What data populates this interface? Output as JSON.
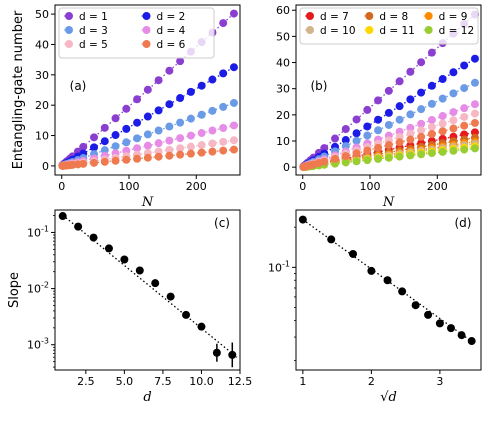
{
  "chart_data": [
    {
      "panel": "(a)",
      "type": "scatter",
      "xlabel": "N",
      "ylabel": "Entangling-gate number",
      "xlim": [
        -10,
        265
      ],
      "ylim": [
        -3,
        53
      ],
      "xticks": [
        0,
        100,
        200
      ],
      "yticks": [
        0,
        10,
        20,
        30,
        40,
        50
      ],
      "legend": {
        "placement": "top",
        "columns": 2
      },
      "series": [
        {
          "name": "d = 1",
          "color": "#8a3fd1",
          "slope": 0.196,
          "intercept": 0.0
        },
        {
          "name": "d = 2",
          "color": "#1c1ce6",
          "slope": 0.127,
          "intercept": 0.0
        },
        {
          "name": "d = 3",
          "color": "#6b9be6",
          "slope": 0.081,
          "intercept": 0.0
        },
        {
          "name": "d = 4",
          "color": "#e68ce6",
          "slope": 0.052,
          "intercept": 0.0
        },
        {
          "name": "d = 5",
          "color": "#f6b8c4",
          "slope": 0.033,
          "intercept": 0.0
        },
        {
          "name": "d = 6",
          "color": "#f07a50",
          "slope": 0.021,
          "intercept": 0.0
        }
      ],
      "x": [
        1,
        2,
        3,
        4,
        6,
        8,
        12,
        16,
        24,
        32,
        48,
        64,
        80,
        96,
        112,
        128,
        144,
        160,
        176,
        192,
        208,
        224,
        240,
        256
      ]
    },
    {
      "panel": "(b)",
      "type": "scatter",
      "xlabel": "N",
      "ylabel": "",
      "xlim": [
        -10,
        265
      ],
      "ylim": [
        -3,
        62
      ],
      "xticks": [
        0,
        100,
        200
      ],
      "yticks": [
        0,
        10,
        20,
        30,
        40,
        50,
        60
      ],
      "legend": {
        "placement": "top",
        "columns": 3
      },
      "series": [
        {
          "name": "d = 7",
          "color": "#e41a1c",
          "slope": 0.052,
          "intercept": 0.0
        },
        {
          "name": "d = 8",
          "color": "#d2691e",
          "slope": 0.044,
          "intercept": 0.0
        },
        {
          "name": "d = 9",
          "color": "#ff8c00",
          "slope": 0.038,
          "intercept": 0.0
        },
        {
          "name": "d = 10",
          "color": "#d2b48c",
          "slope": 0.035,
          "intercept": 0.0
        },
        {
          "name": "d = 11",
          "color": "#ffd700",
          "slope": 0.031,
          "intercept": 0.0
        },
        {
          "name": "d = 12",
          "color": "#9acd32",
          "slope": 0.028,
          "intercept": 0.0
        },
        {
          "name": "",
          "color": "#8a3fd1",
          "slope": 0.228,
          "intercept": 0.0
        },
        {
          "name": "",
          "color": "#1c1ce6",
          "slope": 0.162,
          "intercept": 0.0
        },
        {
          "name": "",
          "color": "#6b9be6",
          "slope": 0.126,
          "intercept": 0.0
        },
        {
          "name": "",
          "color": "#e68ce6",
          "slope": 0.094,
          "intercept": 0.0
        },
        {
          "name": "",
          "color": "#f6b8c4",
          "slope": 0.08,
          "intercept": 0.0
        },
        {
          "name": "",
          "color": "#f07a50",
          "slope": 0.066,
          "intercept": 0.0
        }
      ],
      "x": [
        1,
        2,
        3,
        4,
        6,
        8,
        12,
        16,
        24,
        32,
        48,
        64,
        80,
        96,
        112,
        128,
        144,
        160,
        176,
        192,
        208,
        224,
        240,
        256
      ]
    },
    {
      "panel": "(c)",
      "type": "scatter",
      "xlabel": "d",
      "ylabel": "Slope",
      "xlim": [
        0.5,
        12.5
      ],
      "ylim_log10": [
        -3.45,
        -0.6
      ],
      "yscale": "log",
      "xticks": [
        "2.5",
        "5.0",
        "7.5",
        "10.0",
        "12.5"
      ],
      "yticks": [
        {
          "base": "10",
          "exp": "-1"
        },
        {
          "base": "10",
          "exp": "-2"
        },
        {
          "base": "10",
          "exp": "-3"
        }
      ],
      "x": [
        1,
        2,
        3,
        4,
        5,
        6,
        7,
        8,
        9,
        10,
        11,
        12
      ],
      "y": [
        0.196,
        0.127,
        0.081,
        0.052,
        0.033,
        0.021,
        0.0125,
        0.0072,
        0.0034,
        0.0021,
        0.00072,
        0.00066
      ],
      "yerr_log10": [
        0.04,
        0.02,
        0.02,
        0.02,
        0.02,
        0.02,
        0.02,
        0.03,
        0.03,
        0.04,
        0.16,
        0.22
      ],
      "fit_slope_log10": -0.224,
      "fit_intercept_log10": -0.468
    },
    {
      "panel": "(d)",
      "type": "scatter",
      "xlabel": "√d",
      "ylabel": "",
      "xlim": [
        0.9,
        3.6
      ],
      "yscale": "log",
      "ylim_log10": [
        -1.77,
        -0.57
      ],
      "xticks": [
        "1",
        "2",
        "3"
      ],
      "yticks": [
        {
          "base": "10",
          "exp": "-1"
        }
      ],
      "x": [
        1.0,
        1.414,
        1.732,
        2.0,
        2.236,
        2.449,
        2.646,
        2.828,
        3.0,
        3.162,
        3.317,
        3.464
      ],
      "y": [
        0.228,
        0.162,
        0.126,
        0.094,
        0.08,
        0.066,
        0.052,
        0.044,
        0.038,
        0.035,
        0.031,
        0.028
      ],
      "fit_slope_log10": -0.371,
      "fit_intercept_log10": -0.271
    }
  ]
}
